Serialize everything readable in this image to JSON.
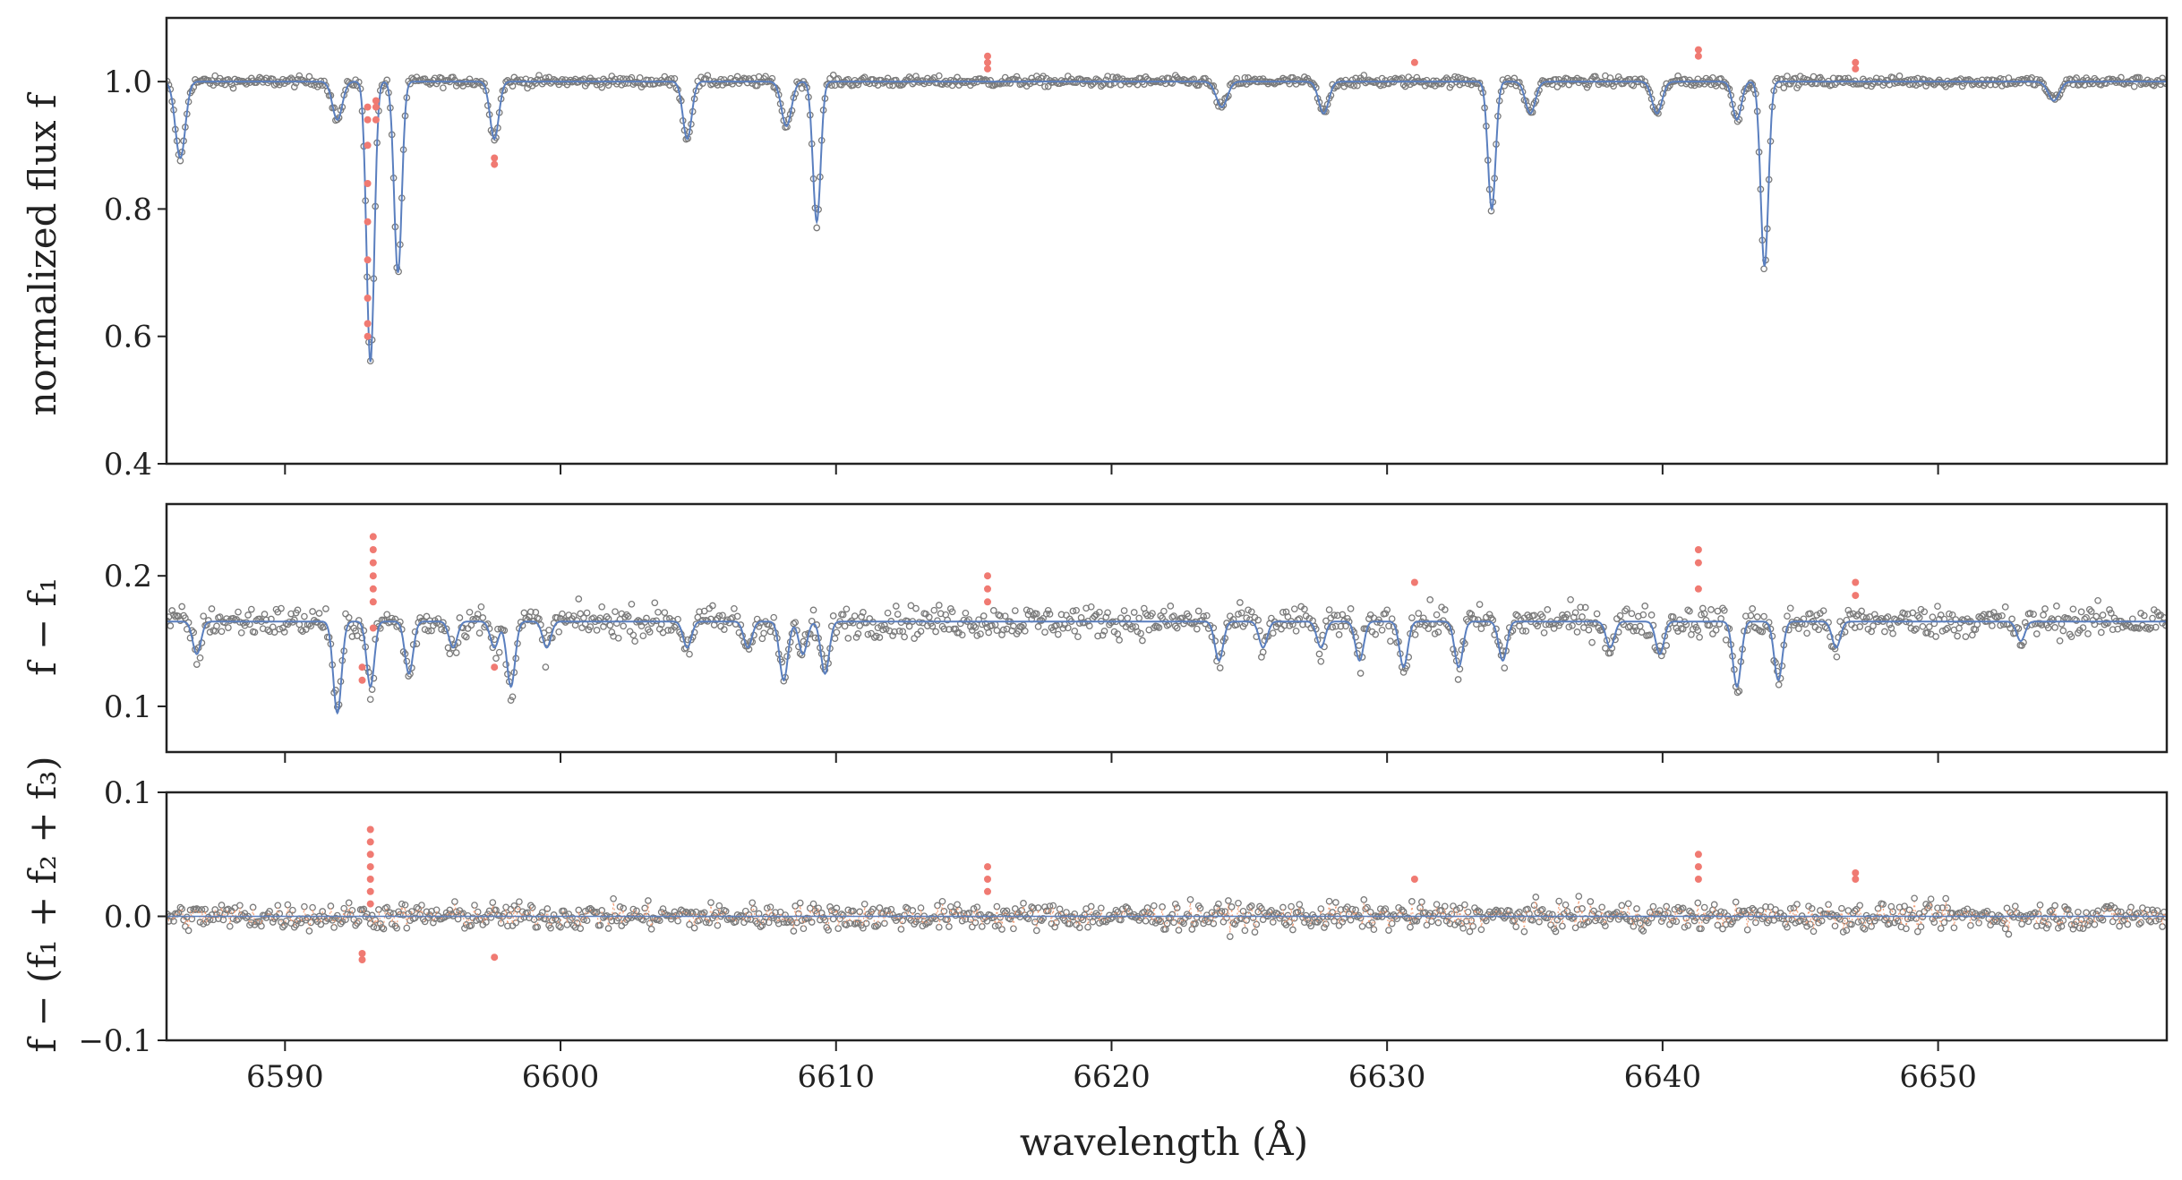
{
  "chart_data": [
    {
      "type": "scatter",
      "panel": "top",
      "xlabel": "",
      "ylabel": "normalized flux f",
      "xlim": [
        6585.7,
        6658.3
      ],
      "ylim": [
        0.4,
        1.1
      ],
      "yticks": [
        "0.4",
        "0.6",
        "0.8",
        "1.0"
      ],
      "continuum": 1.0,
      "absorption_lines": [
        {
          "x": 6586.2,
          "depth": 0.12,
          "width": 0.18
        },
        {
          "x": 6591.9,
          "depth": 0.06,
          "width": 0.18
        },
        {
          "x": 6593.1,
          "depth": 0.44,
          "width": 0.14
        },
        {
          "x": 6594.1,
          "depth": 0.3,
          "width": 0.14
        },
        {
          "x": 6597.6,
          "depth": 0.09,
          "width": 0.16
        },
        {
          "x": 6604.6,
          "depth": 0.09,
          "width": 0.16
        },
        {
          "x": 6608.2,
          "depth": 0.07,
          "width": 0.18
        },
        {
          "x": 6609.3,
          "depth": 0.22,
          "width": 0.14
        },
        {
          "x": 6624.0,
          "depth": 0.04,
          "width": 0.2
        },
        {
          "x": 6627.7,
          "depth": 0.05,
          "width": 0.18
        },
        {
          "x": 6633.8,
          "depth": 0.2,
          "width": 0.14
        },
        {
          "x": 6635.2,
          "depth": 0.05,
          "width": 0.18
        },
        {
          "x": 6639.8,
          "depth": 0.05,
          "width": 0.18
        },
        {
          "x": 6642.7,
          "depth": 0.06,
          "width": 0.16
        },
        {
          "x": 6643.7,
          "depth": 0.29,
          "width": 0.14
        },
        {
          "x": 6654.2,
          "depth": 0.03,
          "width": 0.2
        }
      ],
      "flagged_points": [
        {
          "x": 6593.0,
          "ys": [
            0.6,
            0.62,
            0.66,
            0.72,
            0.78,
            0.84,
            0.9,
            0.94,
            0.96
          ]
        },
        {
          "x": 6593.3,
          "ys": [
            0.94,
            0.96,
            0.97
          ]
        },
        {
          "x": 6597.6,
          "ys": [
            0.87,
            0.88
          ]
        },
        {
          "x": 6615.5,
          "ys": [
            1.02,
            1.03,
            1.04
          ]
        },
        {
          "x": 6631.0,
          "ys": [
            1.03
          ]
        },
        {
          "x": 6641.3,
          "ys": [
            1.04,
            1.05
          ]
        },
        {
          "x": 6647.0,
          "ys": [
            1.02,
            1.03
          ]
        }
      ]
    },
    {
      "type": "scatter",
      "panel": "middle",
      "xlabel": "",
      "ylabel": "f − f₁",
      "xlim": [
        6585.7,
        6658.3
      ],
      "ylim": [
        0.065,
        0.255
      ],
      "yticks": [
        "0.1",
        "0.2"
      ],
      "continuum": 0.165,
      "absorption_lines": [
        {
          "x": 6586.8,
          "depth": 0.025,
          "width": 0.15
        },
        {
          "x": 6591.9,
          "depth": 0.07,
          "width": 0.15
        },
        {
          "x": 6593.1,
          "depth": 0.05,
          "width": 0.14
        },
        {
          "x": 6594.5,
          "depth": 0.04,
          "width": 0.15
        },
        {
          "x": 6596.1,
          "depth": 0.02,
          "width": 0.15
        },
        {
          "x": 6597.6,
          "depth": 0.02,
          "width": 0.15
        },
        {
          "x": 6598.2,
          "depth": 0.05,
          "width": 0.15
        },
        {
          "x": 6599.5,
          "depth": 0.02,
          "width": 0.15
        },
        {
          "x": 6604.6,
          "depth": 0.02,
          "width": 0.15
        },
        {
          "x": 6606.8,
          "depth": 0.02,
          "width": 0.15
        },
        {
          "x": 6608.1,
          "depth": 0.045,
          "width": 0.15
        },
        {
          "x": 6608.8,
          "depth": 0.025,
          "width": 0.15
        },
        {
          "x": 6609.6,
          "depth": 0.04,
          "width": 0.15
        },
        {
          "x": 6623.9,
          "depth": 0.03,
          "width": 0.15
        },
        {
          "x": 6625.5,
          "depth": 0.02,
          "width": 0.15
        },
        {
          "x": 6627.6,
          "depth": 0.02,
          "width": 0.15
        },
        {
          "x": 6629.0,
          "depth": 0.03,
          "width": 0.15
        },
        {
          "x": 6630.6,
          "depth": 0.035,
          "width": 0.15
        },
        {
          "x": 6632.6,
          "depth": 0.035,
          "width": 0.15
        },
        {
          "x": 6634.2,
          "depth": 0.03,
          "width": 0.15
        },
        {
          "x": 6638.1,
          "depth": 0.02,
          "width": 0.15
        },
        {
          "x": 6639.9,
          "depth": 0.025,
          "width": 0.15
        },
        {
          "x": 6642.7,
          "depth": 0.05,
          "width": 0.15
        },
        {
          "x": 6644.2,
          "depth": 0.045,
          "width": 0.15
        },
        {
          "x": 6646.3,
          "depth": 0.02,
          "width": 0.15
        },
        {
          "x": 6653.0,
          "depth": 0.015,
          "width": 0.15
        }
      ],
      "flagged_points": [
        {
          "x": 6592.8,
          "ys": [
            0.12,
            0.13
          ]
        },
        {
          "x": 6593.2,
          "ys": [
            0.16,
            0.18,
            0.19,
            0.2,
            0.21,
            0.22,
            0.23
          ]
        },
        {
          "x": 6597.6,
          "ys": [
            0.13
          ]
        },
        {
          "x": 6615.5,
          "ys": [
            0.18,
            0.19,
            0.2
          ]
        },
        {
          "x": 6631.0,
          "ys": [
            0.195
          ]
        },
        {
          "x": 6641.3,
          "ys": [
            0.19,
            0.21,
            0.22
          ]
        },
        {
          "x": 6647.0,
          "ys": [
            0.185,
            0.195
          ]
        }
      ]
    },
    {
      "type": "scatter",
      "panel": "bottom",
      "xlabel": "wavelength (Å)",
      "ylabel": "f − (f₁ + f₂ + f₃)",
      "xlim": [
        6585.7,
        6658.3
      ],
      "ylim": [
        -0.1,
        0.1
      ],
      "yticks": [
        "−0.1",
        "0.0",
        "0.1"
      ],
      "xticks": [
        "6590",
        "6600",
        "6610",
        "6620",
        "6630",
        "6640",
        "6650"
      ],
      "continuum": 0.0,
      "flagged_points": [
        {
          "x": 6592.8,
          "ys": [
            -0.035,
            -0.03
          ]
        },
        {
          "x": 6593.1,
          "ys": [
            0.01,
            0.02,
            0.03,
            0.04,
            0.05,
            0.06,
            0.07
          ]
        },
        {
          "x": 6597.6,
          "ys": [
            -0.033
          ]
        },
        {
          "x": 6615.5,
          "ys": [
            0.02,
            0.03,
            0.04
          ]
        },
        {
          "x": 6631.0,
          "ys": [
            0.03
          ]
        },
        {
          "x": 6641.3,
          "ys": [
            0.03,
            0.04,
            0.05
          ]
        },
        {
          "x": 6647.0,
          "ys": [
            0.03,
            0.035
          ]
        }
      ]
    }
  ],
  "colors": {
    "observed": "#7a7a7a",
    "model": "#5a7fbf",
    "flagged": "#f07a72",
    "residual_model": "#f3a07a"
  }
}
